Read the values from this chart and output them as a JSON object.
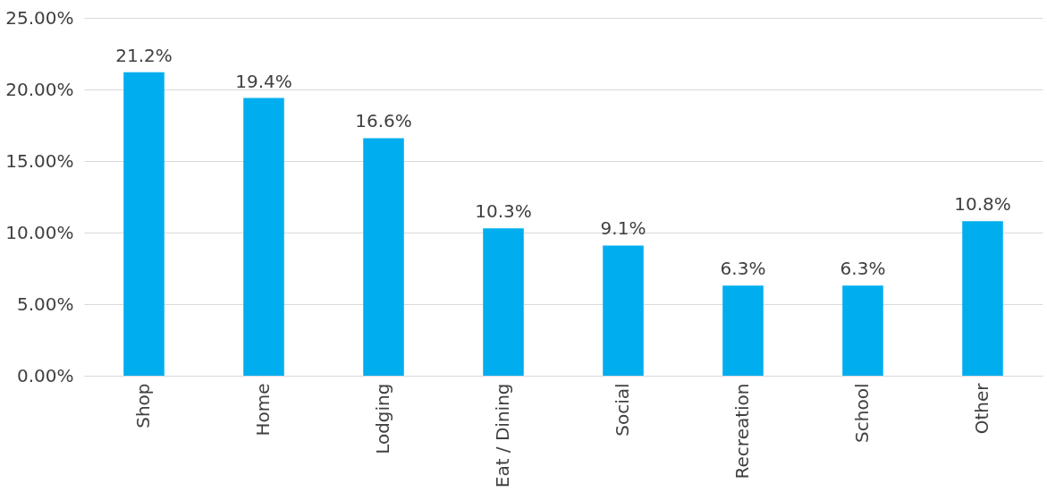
{
  "chart_data": {
    "type": "bar",
    "categories": [
      "Shop",
      "Home",
      "Lodging",
      "Eat / Dining",
      "Social",
      "Recreation",
      "School",
      "Other"
    ],
    "values": [
      21.2,
      19.4,
      16.6,
      10.3,
      9.1,
      6.3,
      6.3,
      10.8
    ],
    "value_labels": [
      "21.2%",
      "19.4%",
      "16.6%",
      "10.3%",
      "9.1%",
      "6.3%",
      "6.3%",
      "10.8%"
    ],
    "color": "#00aeef",
    "ylim": [
      0,
      25
    ],
    "yticks": [
      {
        "value": 0,
        "label": "0.00%"
      },
      {
        "value": 5,
        "label": "5.00%"
      },
      {
        "value": 10,
        "label": "10.00%"
      },
      {
        "value": 15,
        "label": "15.00%"
      },
      {
        "value": 20,
        "label": "20.00%"
      },
      {
        "value": 25,
        "label": "25.00%"
      }
    ],
    "grid": "y"
  }
}
